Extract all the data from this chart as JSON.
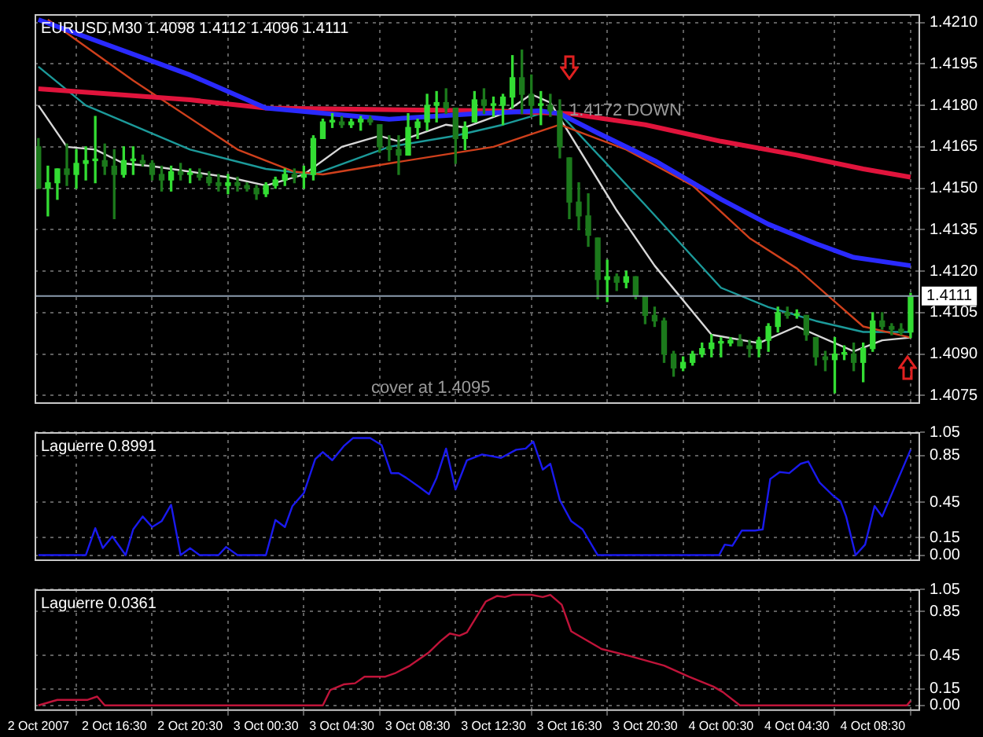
{
  "chart_data": [
    {
      "type": "candlestick",
      "title": "EURUSD,M30 1.4098 1.4112 1.4096 1.4111",
      "colors": [
        "#1c7a1c",
        "#33dd33",
        "#33dd33",
        "#1c7a1c",
        "#33dd33",
        "#33dd33",
        "#33dd33",
        "#1c7a1c",
        "#1c7a1c",
        "#33dd33",
        "#33dd33",
        "#1c7a1c",
        "#1c7a1c",
        "#1c7a1c",
        "#33dd33",
        "#1c7a1c",
        "#33dd33",
        "#1c7a1c",
        "#1c7a1c",
        "#1c7a1c",
        "#33dd33",
        "#1c7a1c",
        "#1c7a1c",
        "#1c7a1c",
        "#33dd33",
        "#33dd33",
        "#33dd33",
        "#1c7a1c",
        "#33dd33",
        "#33dd33",
        "#33dd33",
        "#33dd33",
        "#1c7a1c",
        "#33dd33",
        "#33dd33",
        "#1c7a1c",
        "#1c7a1c",
        "#1c7a1c",
        "#1c7a1c",
        "#33dd33",
        "#33dd33",
        "#33dd33",
        "#33dd33",
        "#1c7a1c",
        "#1c7a1c",
        "#33dd33",
        "#33dd33",
        "#1c7a1c",
        "#33dd33",
        "#33dd33",
        "#33dd33",
        "#1c7a1c",
        "#1c7a1c",
        "#33dd33",
        "#1c7a1c",
        "#1c7a1c",
        "#1c7a1c",
        "#1c7a1c",
        "#1c7a1c",
        "#1c7a1c",
        "#33dd33",
        "#1c7a1c",
        "#33dd33",
        "#1c7a1c",
        "#1c7a1c",
        "#1c7a1c",
        "#1c7a1c",
        "#1c7a1c",
        "#33dd33",
        "#33dd33",
        "#33dd33",
        "#33dd33",
        "#33dd33",
        "#33dd33",
        "#1c7a1c",
        "#1c7a1c",
        "#33dd33",
        "#33dd33",
        "#33dd33",
        "#1c7a1c",
        "#33dd33",
        "#1c7a1c",
        "#1c7a1c",
        "#1c7a1c",
        "#33dd33",
        "#33dd33",
        "#1c7a1c",
        "#33dd33",
        "#33dd33",
        "#1c7a1c",
        "#1c7a1c",
        "#1c7a1c",
        "#33dd33"
      ],
      "x": [
        "2007-10-02T12:30",
        "2007-10-02T13:00",
        "2007-10-02T13:30",
        "2007-10-02T14:00",
        "2007-10-02T14:30",
        "2007-10-02T15:00",
        "2007-10-02T15:30",
        "2007-10-02T16:00",
        "2007-10-02T16:30",
        "2007-10-02T17:00",
        "2007-10-02T17:30",
        "2007-10-02T18:00",
        "2007-10-02T18:30",
        "2007-10-02T19:00",
        "2007-10-02T19:30",
        "2007-10-02T20:00",
        "2007-10-02T20:30",
        "2007-10-02T21:00",
        "2007-10-02T21:30",
        "2007-10-02T22:00",
        "2007-10-02T22:30",
        "2007-10-02T23:00",
        "2007-10-02T23:30",
        "2007-10-03T00:00",
        "2007-10-03T00:30",
        "2007-10-03T01:00",
        "2007-10-03T01:30",
        "2007-10-03T02:00",
        "2007-10-03T02:30",
        "2007-10-03T03:00",
        "2007-10-03T03:30",
        "2007-10-03T04:00",
        "2007-10-03T04:30",
        "2007-10-03T05:00",
        "2007-10-03T05:30",
        "2007-10-03T06:00",
        "2007-10-03T06:30",
        "2007-10-03T07:00",
        "2007-10-03T07:30",
        "2007-10-03T08:00",
        "2007-10-03T08:30",
        "2007-10-03T09:00",
        "2007-10-03T09:30",
        "2007-10-03T10:00",
        "2007-10-03T10:30",
        "2007-10-03T11:00",
        "2007-10-03T11:30",
        "2007-10-03T12:00",
        "2007-10-03T12:30",
        "2007-10-03T13:00",
        "2007-10-03T13:30",
        "2007-10-03T14:00",
        "2007-10-03T14:30",
        "2007-10-03T15:00",
        "2007-10-03T15:30",
        "2007-10-03T16:00",
        "2007-10-03T16:30",
        "2007-10-03T17:00",
        "2007-10-03T17:30",
        "2007-10-03T18:00",
        "2007-10-03T18:30",
        "2007-10-03T19:00",
        "2007-10-03T19:30",
        "2007-10-03T20:00",
        "2007-10-03T20:30",
        "2007-10-03T21:00",
        "2007-10-03T21:30",
        "2007-10-03T22:00",
        "2007-10-03T22:30",
        "2007-10-03T23:00",
        "2007-10-03T23:30",
        "2007-10-04T00:00",
        "2007-10-04T00:30",
        "2007-10-04T01:00",
        "2007-10-04T01:30",
        "2007-10-04T02:00",
        "2007-10-04T02:30",
        "2007-10-04T03:00",
        "2007-10-04T03:30",
        "2007-10-04T04:00",
        "2007-10-04T04:30",
        "2007-10-04T05:00",
        "2007-10-04T05:30",
        "2007-10-04T06:00",
        "2007-10-04T06:30",
        "2007-10-04T07:00",
        "2007-10-04T07:30",
        "2007-10-04T08:00",
        "2007-10-04T08:30",
        "2007-10-04T09:00",
        "2007-10-04T09:30",
        "2007-10-04T10:00",
        "2007-10-04T10:30"
      ],
      "ohlc": [
        [
          1.4165,
          1.4168,
          1.415,
          1.415
        ],
        [
          1.415,
          1.4158,
          1.414,
          1.4152
        ],
        [
          1.4152,
          1.4157,
          1.4146,
          1.4157
        ],
        [
          1.4157,
          1.4166,
          1.4151,
          1.4155
        ],
        [
          1.4155,
          1.4164,
          1.415,
          1.4159
        ],
        [
          1.4159,
          1.4165,
          1.4153,
          1.416
        ],
        [
          1.416,
          1.4176,
          1.4152,
          1.416
        ],
        [
          1.416,
          1.4166,
          1.4155,
          1.4158
        ],
        [
          1.4158,
          1.4164,
          1.4139,
          1.4155
        ],
        [
          1.4155,
          1.4165,
          1.4154,
          1.416
        ],
        [
          1.416,
          1.4165,
          1.4155,
          1.416
        ],
        [
          1.416,
          1.4162,
          1.4158,
          1.4159
        ],
        [
          1.4159,
          1.416,
          1.4153,
          1.4155
        ],
        [
          1.4155,
          1.4158,
          1.4149,
          1.4153
        ],
        [
          1.4153,
          1.4158,
          1.4149,
          1.4156
        ],
        [
          1.4156,
          1.4159,
          1.4153,
          1.4155
        ],
        [
          1.4155,
          1.4157,
          1.4152,
          1.4155
        ],
        [
          1.4155,
          1.4157,
          1.4153,
          1.4154
        ],
        [
          1.4154,
          1.4156,
          1.4151,
          1.4152
        ],
        [
          1.4152,
          1.4155,
          1.4149,
          1.4151
        ],
        [
          1.4151,
          1.4155,
          1.4148,
          1.4152
        ],
        [
          1.4152,
          1.4154,
          1.4149,
          1.4151
        ],
        [
          1.4151,
          1.4152,
          1.4149,
          1.415
        ],
        [
          1.415,
          1.4151,
          1.4146,
          1.4148
        ],
        [
          1.4148,
          1.4152,
          1.4147,
          1.4151
        ],
        [
          1.4151,
          1.4154,
          1.415,
          1.4153
        ],
        [
          1.4153,
          1.4157,
          1.4151,
          1.4155
        ],
        [
          1.4155,
          1.4157,
          1.4152,
          1.4154
        ],
        [
          1.4154,
          1.4158,
          1.415,
          1.4155
        ],
        [
          1.4155,
          1.4169,
          1.4153,
          1.4168
        ],
        [
          1.4168,
          1.4175,
          1.4168,
          1.4174
        ],
        [
          1.4174,
          1.4177,
          1.4172,
          1.4174
        ],
        [
          1.4174,
          1.4176,
          1.4172,
          1.4173
        ],
        [
          1.4173,
          1.4175,
          1.4172,
          1.4174
        ],
        [
          1.4174,
          1.4176,
          1.4171,
          1.4175
        ],
        [
          1.4175,
          1.4176,
          1.4173,
          1.4174
        ],
        [
          1.4173,
          1.4173,
          1.4163,
          1.4165
        ],
        [
          1.4165,
          1.4169,
          1.416,
          1.4164
        ],
        [
          1.4164,
          1.4169,
          1.4155,
          1.4162
        ],
        [
          1.4162,
          1.4177,
          1.4162,
          1.4172
        ],
        [
          1.4172,
          1.4175,
          1.4168,
          1.4174
        ],
        [
          1.4174,
          1.4184,
          1.4171,
          1.418
        ],
        [
          1.418,
          1.4185,
          1.4174,
          1.4181
        ],
        [
          1.4181,
          1.4186,
          1.4177,
          1.4179
        ],
        [
          1.4179,
          1.4179,
          1.4159,
          1.4168
        ],
        [
          1.4168,
          1.4174,
          1.4164,
          1.4172
        ],
        [
          1.4174,
          1.4185,
          1.4174,
          1.4182
        ],
        [
          1.4182,
          1.4186,
          1.4177,
          1.418
        ],
        [
          1.418,
          1.4183,
          1.4176,
          1.418
        ],
        [
          1.418,
          1.4184,
          1.4173,
          1.4183
        ],
        [
          1.4183,
          1.4198,
          1.4179,
          1.419
        ],
        [
          1.419,
          1.42,
          1.4177,
          1.4184
        ],
        [
          1.4184,
          1.4191,
          1.4176,
          1.418
        ],
        [
          1.418,
          1.4185,
          1.4173,
          1.418
        ],
        [
          1.418,
          1.4184,
          1.4176,
          1.4178
        ],
        [
          1.4178,
          1.4182,
          1.4161,
          1.4165
        ],
        [
          1.4161,
          1.4161,
          1.4139,
          1.4145
        ],
        [
          1.4145,
          1.4152,
          1.4135,
          1.414
        ],
        [
          1.414,
          1.4148,
          1.4129,
          1.4133
        ],
        [
          1.4132,
          1.4132,
          1.411,
          1.4117
        ],
        [
          1.4117,
          1.4124,
          1.4109,
          1.4118
        ],
        [
          1.4118,
          1.4119,
          1.4113,
          1.4116
        ],
        [
          1.4116,
          1.412,
          1.4114,
          1.4118
        ],
        [
          1.4118,
          1.4118,
          1.411,
          1.4111
        ],
        [
          1.4111,
          1.4111,
          1.4101,
          1.4104
        ],
        [
          1.4104,
          1.4107,
          1.41,
          1.4102
        ],
        [
          1.4102,
          1.4103,
          1.4087,
          1.409
        ],
        [
          1.409,
          1.4091,
          1.4082,
          1.4085
        ],
        [
          1.4085,
          1.4089,
          1.4084,
          1.4087
        ],
        [
          1.4087,
          1.4091,
          1.4086,
          1.409
        ],
        [
          1.409,
          1.4094,
          1.4089,
          1.4092
        ],
        [
          1.4092,
          1.4097,
          1.4089,
          1.4094
        ],
        [
          1.4094,
          1.4096,
          1.4089,
          1.4094
        ],
        [
          1.4094,
          1.4096,
          1.4093,
          1.4095
        ],
        [
          1.4095,
          1.4097,
          1.4093,
          1.4093
        ],
        [
          1.4093,
          1.4095,
          1.4089,
          1.4092
        ],
        [
          1.4092,
          1.4096,
          1.4089,
          1.4095
        ],
        [
          1.4095,
          1.4101,
          1.4091,
          1.41
        ],
        [
          1.41,
          1.4107,
          1.4098,
          1.4105
        ],
        [
          1.4105,
          1.4107,
          1.4103,
          1.4104
        ],
        [
          1.4104,
          1.4106,
          1.4103,
          1.4104
        ],
        [
          1.4104,
          1.4104,
          1.4095,
          1.4097
        ],
        [
          1.4096,
          1.4096,
          1.4086,
          1.4089
        ],
        [
          1.4089,
          1.4091,
          1.4084,
          1.4088
        ],
        [
          1.4088,
          1.4096,
          1.4076,
          1.409
        ],
        [
          1.409,
          1.4093,
          1.4088,
          1.409
        ],
        [
          1.409,
          1.4094,
          1.4084,
          1.4087
        ],
        [
          1.4087,
          1.4094,
          1.408,
          1.4092
        ],
        [
          1.4092,
          1.4105,
          1.4091,
          1.4102
        ],
        [
          1.4102,
          1.4105,
          1.4099,
          1.41
        ],
        [
          1.41,
          1.4101,
          1.4097,
          1.4099
        ],
        [
          1.4099,
          1.4101,
          1.4097,
          1.4098
        ],
        [
          1.4098,
          1.4112,
          1.4096,
          1.4111
        ]
      ],
      "series": [
        {
          "type": "line",
          "color": "#2a2aff",
          "x": [
            "2007-10-02T12:30",
            "2007-10-02T20:30",
            "2007-10-03T00:30",
            "2007-10-03T07:00",
            "2007-10-03T11:30",
            "2007-10-03T15:00",
            "2007-10-03T16:00",
            "2007-10-03T18:00",
            "2007-10-03T21:00",
            "2007-10-04T00:30",
            "2007-10-04T03:00",
            "2007-10-04T05:30",
            "2007-10-04T07:30",
            "2007-10-04T10:30"
          ],
          "values": [
            1.4211,
            1.4191,
            1.4179,
            1.4175,
            1.4177,
            1.4178,
            1.4177,
            1.417,
            1.416,
            1.4146,
            1.4137,
            1.413,
            1.4125,
            1.4122
          ]
        },
        {
          "type": "line",
          "color": "#e0143c",
          "x": [
            "2007-10-02T12:30",
            "2007-10-02T20:30",
            "2007-10-03T00:30",
            "2007-10-03T12:30",
            "2007-10-03T16:30",
            "2007-10-03T20:30",
            "2007-10-04T00:30",
            "2007-10-04T04:30",
            "2007-10-04T08:00",
            "2007-10-04T10:30"
          ],
          "values": [
            1.4186,
            1.4182,
            1.4179,
            1.4178,
            1.4177,
            1.4173,
            1.4167,
            1.4162,
            1.4157,
            1.4154
          ]
        },
        {
          "type": "line",
          "color": "#d0401c",
          "x": [
            "2007-10-02T13:00",
            "2007-10-02T17:30",
            "2007-10-02T23:00",
            "2007-10-03T02:00",
            "2007-10-03T03:30",
            "2007-10-03T07:00",
            "2007-10-03T12:30",
            "2007-10-03T16:00",
            "2007-10-03T19:30",
            "2007-10-03T23:00",
            "2007-10-04T02:00",
            "2007-10-04T04:30",
            "2007-10-04T06:30",
            "2007-10-04T08:00",
            "2007-10-04T10:30"
          ],
          "values": [
            1.4211,
            1.4189,
            1.4164,
            1.4156,
            1.4155,
            1.4159,
            1.4165,
            1.4173,
            1.4164,
            1.4151,
            1.4132,
            1.4121,
            1.4109,
            1.41,
            1.4096
          ]
        },
        {
          "type": "line",
          "color": "#1c9a9a",
          "x": [
            "2007-10-02T12:30",
            "2007-10-02T15:00",
            "2007-10-02T20:30",
            "2007-10-03T00:30",
            "2007-10-03T03:00",
            "2007-10-03T07:00",
            "2007-10-03T10:30",
            "2007-10-03T13:00",
            "2007-10-03T15:00",
            "2007-10-03T16:00",
            "2007-10-03T20:30",
            "2007-10-04T00:30",
            "2007-10-04T03:00",
            "2007-10-04T05:30",
            "2007-10-04T08:00",
            "2007-10-04T10:30"
          ],
          "values": [
            1.4194,
            1.418,
            1.4164,
            1.4157,
            1.4155,
            1.4165,
            1.4169,
            1.4173,
            1.4177,
            1.4177,
            1.4144,
            1.4114,
            1.4107,
            1.4102,
            1.4098,
            1.4098
          ]
        },
        {
          "type": "line",
          "color": "#d8d8d8",
          "x": [
            "2007-10-02T12:30",
            "2007-10-02T14:00",
            "2007-10-02T15:30",
            "2007-10-02T17:00",
            "2007-10-02T18:30",
            "2007-10-02T20:30",
            "2007-10-02T22:30",
            "2007-10-03T00:30",
            "2007-10-03T02:30",
            "2007-10-03T04:30",
            "2007-10-03T06:30",
            "2007-10-03T07:30",
            "2007-10-03T10:00",
            "2007-10-03T11:00",
            "2007-10-03T13:00",
            "2007-10-03T14:30",
            "2007-10-03T15:30",
            "2007-10-03T19:00",
            "2007-10-03T21:00",
            "2007-10-04T00:00",
            "2007-10-04T02:30",
            "2007-10-04T04:30",
            "2007-10-04T07:30",
            "2007-10-04T09:00",
            "2007-10-04T10:30"
          ],
          "values": [
            1.418,
            1.4165,
            1.4164,
            1.4159,
            1.4158,
            1.4156,
            1.4154,
            1.4151,
            1.4155,
            1.4165,
            1.4169,
            1.4167,
            1.4173,
            1.4172,
            1.4177,
            1.4184,
            1.4181,
            1.4142,
            1.4122,
            1.4097,
            1.4094,
            1.41,
            1.4091,
            1.4095,
            1.4096
          ]
        }
      ],
      "xlim": [
        "2007-10-02T12:18",
        "2007-10-04T11:00"
      ],
      "xticks": [
        {
          "value": "2007-10-02T12:30",
          "label": null
        },
        {
          "value": "2007-10-02T16:30",
          "label": null
        },
        {
          "value": "2007-10-02T20:30",
          "label": null
        },
        {
          "value": "2007-10-03T00:30",
          "label": null
        },
        {
          "value": "2007-10-03T04:30",
          "label": null
        },
        {
          "value": "2007-10-03T08:30",
          "label": null
        },
        {
          "value": "2007-10-03T12:30",
          "label": null
        },
        {
          "value": "2007-10-03T16:30",
          "label": null
        },
        {
          "value": "2007-10-03T20:30",
          "label": null
        },
        {
          "value": "2007-10-04T00:30",
          "label": null
        },
        {
          "value": "2007-10-04T04:30",
          "label": null
        },
        {
          "value": "2007-10-04T08:30",
          "label": null
        }
      ],
      "ylim": [
        1.4072,
        1.4213
      ],
      "yticks": [
        1.4075,
        {
          "value": 1.409,
          "label": "1.4090"
        },
        1.4105,
        {
          "value": 1.412,
          "label": "1.4120"
        },
        1.4135,
        {
          "value": 1.415,
          "label": "1.4150"
        },
        1.4165,
        {
          "value": 1.418,
          "label": "1.4180"
        },
        1.4195,
        {
          "value": 1.421,
          "label": "1.4210"
        }
      ],
      "grid": true,
      "tick_labels": "y",
      "marker": "none",
      "ref_lines": [
        {
          "axis": "y",
          "value": 1.4111,
          "label": "1.4111",
          "color": "#8c9cae"
        }
      ],
      "annotations": [
        {
          "text": "1.4172 DOWN",
          "x": "2007-10-03T16:30",
          "y": 1.4178
        },
        "cover at 1.4095"
      ]
    },
    {
      "type": "line",
      "title": "Laguerre 0.8991",
      "series": [
        {
          "color": "#1a1aee",
          "x": [
            "2007-10-02T12:30",
            "2007-10-02T15:00",
            "2007-10-02T15:30",
            "2007-10-02T15:54",
            "2007-10-02T16:24",
            "2007-10-02T17:06",
            "2007-10-02T17:30",
            "2007-10-02T18:00",
            "2007-10-02T18:30",
            "2007-10-02T19:00",
            "2007-10-02T19:30",
            "2007-10-02T20:00",
            "2007-10-02T20:30",
            "2007-10-02T21:00",
            "2007-10-02T22:00",
            "2007-10-02T22:24",
            "2007-10-02T23:00",
            "2007-10-03T00:30",
            "2007-10-03T01:00",
            "2007-10-03T01:30",
            "2007-10-03T01:54",
            "2007-10-03T02:30",
            "2007-10-03T03:06",
            "2007-10-03T03:30",
            "2007-10-03T04:00",
            "2007-10-03T04:36",
            "2007-10-03T05:06",
            "2007-10-03T06:00",
            "2007-10-03T06:36",
            "2007-10-03T07:06",
            "2007-10-03T07:30",
            "2007-10-03T07:54",
            "2007-10-03T08:36",
            "2007-10-03T09:06",
            "2007-10-03T09:30",
            "2007-10-03T10:00",
            "2007-10-03T10:30",
            "2007-10-03T11:06",
            "2007-10-03T11:54",
            "2007-10-03T12:54",
            "2007-10-03T13:42",
            "2007-10-03T14:12",
            "2007-10-03T14:36",
            "2007-10-03T15:06",
            "2007-10-03T15:30",
            "2007-10-03T16:00",
            "2007-10-03T16:36",
            "2007-10-03T17:12",
            "2007-10-03T18:00",
            "2007-10-04T00:24",
            "2007-10-04T00:42",
            "2007-10-04T01:06",
            "2007-10-04T01:36",
            "2007-10-04T02:18",
            "2007-10-04T02:42",
            "2007-10-04T03:06",
            "2007-10-04T03:36",
            "2007-10-04T04:06",
            "2007-10-04T04:42",
            "2007-10-04T05:06",
            "2007-10-04T05:42",
            "2007-10-04T06:24",
            "2007-10-04T06:48",
            "2007-10-04T07:06",
            "2007-10-04T07:36",
            "2007-10-04T08:06",
            "2007-10-04T08:36",
            "2007-10-04T09:00",
            "2007-10-04T10:30"
          ],
          "values": [
            0,
            0,
            0.23,
            0.06,
            0.16,
            0,
            0.22,
            0.33,
            0.24,
            0.29,
            0.43,
            0,
            0.06,
            0,
            0,
            0.07,
            0,
            0,
            0.3,
            0.24,
            0.42,
            0.53,
            0.82,
            0.88,
            0.81,
            0.93,
            1,
            1,
            0.94,
            0.7,
            0.7,
            0.66,
            0.58,
            0.52,
            0.66,
            0.91,
            0.56,
            0.81,
            0.86,
            0.83,
            0.9,
            0.91,
            0.97,
            0.73,
            0.78,
            0.47,
            0.29,
            0.22,
            0,
            0,
            0.09,
            0.08,
            0.21,
            0.21,
            0.22,
            0.65,
            0.71,
            0.7,
            0.78,
            0.8,
            0.62,
            0.51,
            0.46,
            0.33,
            0,
            0.09,
            0.42,
            0.33,
            0.9
          ]
        }
      ],
      "xlim": [
        "2007-10-02T12:18",
        "2007-10-04T11:00"
      ],
      "xticks": [
        {
          "value": "2007-10-02T12:30",
          "label": null
        },
        {
          "value": "2007-10-02T16:30",
          "label": null
        },
        {
          "value": "2007-10-02T20:30",
          "label": null
        },
        {
          "value": "2007-10-03T00:30",
          "label": null
        },
        {
          "value": "2007-10-03T04:30",
          "label": null
        },
        {
          "value": "2007-10-03T08:30",
          "label": null
        },
        {
          "value": "2007-10-03T12:30",
          "label": null
        },
        {
          "value": "2007-10-03T16:30",
          "label": null
        },
        {
          "value": "2007-10-03T20:30",
          "label": null
        },
        {
          "value": "2007-10-04T00:30",
          "label": null
        },
        {
          "value": "2007-10-04T04:30",
          "label": null
        },
        {
          "value": "2007-10-04T08:30",
          "label": null
        }
      ],
      "ylim": [
        -0.05,
        1.05
      ],
      "yticks": [
        {
          "value": 0,
          "label": "0.00"
        },
        0.15,
        0.45,
        0.85,
        1.05
      ],
      "grid": true,
      "tick_labels": "y",
      "marker": "none"
    },
    {
      "type": "line",
      "title": "Laguerre 0.0361",
      "series": [
        {
          "color": "#c0143a",
          "x": [
            "2007-10-02T12:30",
            "2007-10-02T13:30",
            "2007-10-02T15:06",
            "2007-10-02T15:36",
            "2007-10-02T16:00",
            "2007-10-03T03:30",
            "2007-10-03T03:54",
            "2007-10-03T04:36",
            "2007-10-03T05:12",
            "2007-10-03T05:42",
            "2007-10-03T06:48",
            "2007-10-03T07:18",
            "2007-10-03T08:06",
            "2007-10-03T09:06",
            "2007-10-03T09:42",
            "2007-10-03T10:12",
            "2007-10-03T10:42",
            "2007-10-03T11:06",
            "2007-10-03T12:06",
            "2007-10-03T12:42",
            "2007-10-03T13:06",
            "2007-10-03T13:30",
            "2007-10-03T14:30",
            "2007-10-03T15:06",
            "2007-10-03T15:30",
            "2007-10-03T16:06",
            "2007-10-03T16:36",
            "2007-10-03T17:06",
            "2007-10-03T18:12",
            "2007-10-03T19:36",
            "2007-10-03T21:30",
            "2007-10-03T22:48",
            "2007-10-04T00:06",
            "2007-10-04T00:36",
            "2007-10-04T01:30",
            "2007-10-04T10:18",
            "2007-10-04T10:30"
          ],
          "values": [
            0,
            0.05,
            0.05,
            0.08,
            0,
            0,
            0.14,
            0.19,
            0.2,
            0.26,
            0.26,
            0.29,
            0.36,
            0.48,
            0.58,
            0.65,
            0.63,
            0.66,
            0.94,
            0.99,
            0.98,
            1,
            1,
            0.98,
            1,
            0.91,
            0.67,
            0.62,
            0.51,
            0.45,
            0.36,
            0.26,
            0.17,
            0.12,
            0,
            0,
            0.04
          ]
        }
      ],
      "xlim": [
        "2007-10-02T12:18",
        "2007-10-04T11:00"
      ],
      "xticks": [
        {
          "value": "2007-10-02T12:30",
          "label": "2 Oct 2007"
        },
        {
          "value": "2007-10-02T16:30",
          "label": "2 Oct 16:30"
        },
        {
          "value": "2007-10-02T20:30",
          "label": "2 Oct 20:30"
        },
        {
          "value": "2007-10-03T00:30",
          "label": "3 Oct 00:30"
        },
        {
          "value": "2007-10-03T04:30",
          "label": "3 Oct 04:30"
        },
        {
          "value": "2007-10-03T08:30",
          "label": "3 Oct 08:30"
        },
        {
          "value": "2007-10-03T12:30",
          "label": "3 Oct 12:30"
        },
        {
          "value": "2007-10-03T16:30",
          "label": "3 Oct 16:30"
        },
        {
          "value": "2007-10-03T20:30",
          "label": "3 Oct 20:30"
        },
        {
          "value": "2007-10-04T00:30",
          "label": "4 Oct 00:30"
        },
        {
          "value": "2007-10-04T04:30",
          "label": "4 Oct 04:30"
        },
        {
          "value": "2007-10-04T08:30",
          "label": "4 Oct 08:30"
        }
      ],
      "ylim": [
        -0.05,
        1.05
      ],
      "yticks": [
        {
          "value": 0,
          "label": "0.00"
        },
        0.15,
        0.45,
        0.85,
        1.05
      ],
      "grid": true,
      "marker": "none"
    }
  ]
}
